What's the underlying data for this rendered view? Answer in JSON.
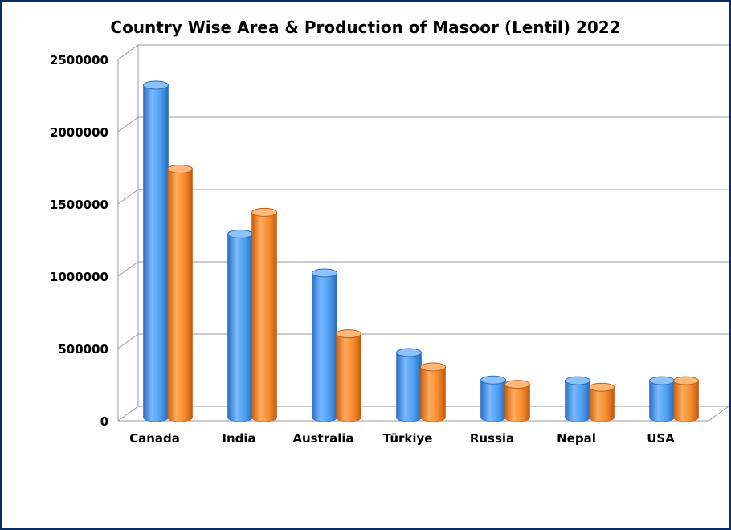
{
  "chart_data": {
    "type": "bar",
    "title": "Country Wise Area & Production of Masoor (Lentil) 2022",
    "categories": [
      "Canada",
      "India",
      "Australia",
      "Türkiye",
      "Russia",
      "Nepal",
      "USA"
    ],
    "series": [
      {
        "values": [
          2300000,
          1270000,
          1000000,
          450000,
          260000,
          255000,
          255000
        ],
        "color": "#4a9eef"
      },
      {
        "values": [
          1720000,
          1420000,
          580000,
          350000,
          230000,
          210000,
          255000
        ],
        "color": "#f58a2b"
      }
    ],
    "ylim": [
      0,
      2500000
    ],
    "yticks": [
      "0",
      "500000",
      "1000000",
      "1500000",
      "2000000",
      "2500000"
    ],
    "grid": true,
    "style": "3d-cylinder",
    "legend": "none"
  }
}
